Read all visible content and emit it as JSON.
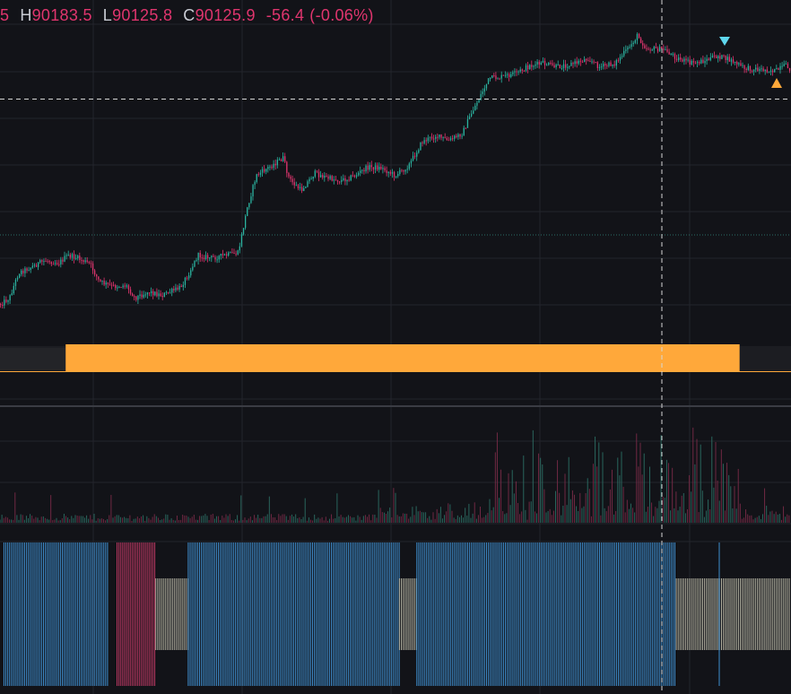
{
  "legend": {
    "open_fragment": "5",
    "high_label": "H",
    "high_value": "90183.5",
    "low_label": "L",
    "low_value": "90125.8",
    "close_label": "C",
    "close_value": "90125.9",
    "change": "-56.4",
    "change_pct": "(-0.06%)"
  },
  "colors": {
    "background": "#121318",
    "up": "#2bb3a0",
    "down": "#e0356e",
    "grid": "#23252c",
    "signal_bar": "#ffa83a",
    "buy_marker": "#ffa83a",
    "sell_marker": "#5fd7ee",
    "histogram_blue": "#3f8fd0",
    "histogram_pink": "#c03a66",
    "histogram_neutral": "#b8b7a6"
  },
  "chart_data": {
    "type": "line",
    "price_panel": {
      "series": "candlestick close path (approximate, relative scale)",
      "points": [
        [
          0,
          15
        ],
        [
          10,
          20
        ],
        [
          20,
          40
        ],
        [
          35,
          45
        ],
        [
          50,
          50
        ],
        [
          65,
          48
        ],
        [
          75,
          54
        ],
        [
          85,
          52
        ],
        [
          100,
          47
        ],
        [
          110,
          33
        ],
        [
          125,
          29
        ],
        [
          140,
          30
        ],
        [
          150,
          20
        ],
        [
          165,
          25
        ],
        [
          180,
          22
        ],
        [
          200,
          28
        ],
        [
          210,
          40
        ],
        [
          220,
          54
        ],
        [
          235,
          52
        ],
        [
          250,
          54
        ],
        [
          265,
          56
        ],
        [
          275,
          92
        ],
        [
          285,
          118
        ],
        [
          300,
          125
        ],
        [
          315,
          132
        ],
        [
          322,
          115
        ],
        [
          335,
          106
        ],
        [
          350,
          120
        ],
        [
          365,
          116
        ],
        [
          380,
          114
        ],
        [
          395,
          118
        ],
        [
          410,
          125
        ],
        [
          425,
          124
        ],
        [
          440,
          118
        ],
        [
          455,
          126
        ],
        [
          470,
          145
        ],
        [
          485,
          150
        ],
        [
          500,
          146
        ],
        [
          515,
          152
        ],
        [
          525,
          168
        ],
        [
          535,
          182
        ],
        [
          545,
          196
        ],
        [
          560,
          197
        ],
        [
          575,
          200
        ],
        [
          590,
          206
        ],
        [
          605,
          208
        ],
        [
          620,
          205
        ],
        [
          640,
          208
        ],
        [
          655,
          212
        ],
        [
          668,
          205
        ],
        [
          685,
          208
        ],
        [
          700,
          220
        ],
        [
          710,
          230
        ],
        [
          720,
          220
        ],
        [
          740,
          219
        ],
        [
          755,
          212
        ],
        [
          770,
          208
        ],
        [
          785,
          210
        ],
        [
          800,
          214
        ],
        [
          815,
          210
        ],
        [
          830,
          204
        ],
        [
          850,
          203
        ],
        [
          865,
          202
        ],
        [
          875,
          206
        ],
        [
          882,
          203
        ]
      ],
      "sell_marker_index": 808,
      "buy_marker_index": 866
    },
    "signal_bar": {
      "start_fraction": 0.083,
      "end_fraction": 0.935
    },
    "histogram_segments": [
      {
        "from": 0.005,
        "to": 0.137,
        "state": "blue"
      },
      {
        "from": 0.148,
        "to": 0.197,
        "state": "pink"
      },
      {
        "from": 0.197,
        "to": 0.238,
        "state": "neutral"
      },
      {
        "from": 0.238,
        "to": 0.505,
        "state": "blue"
      },
      {
        "from": 0.505,
        "to": 0.527,
        "state": "neutral"
      },
      {
        "from": 0.527,
        "to": 0.855,
        "state": "blue"
      },
      {
        "from": 0.855,
        "to": 1.0,
        "state": "neutral"
      }
    ]
  }
}
